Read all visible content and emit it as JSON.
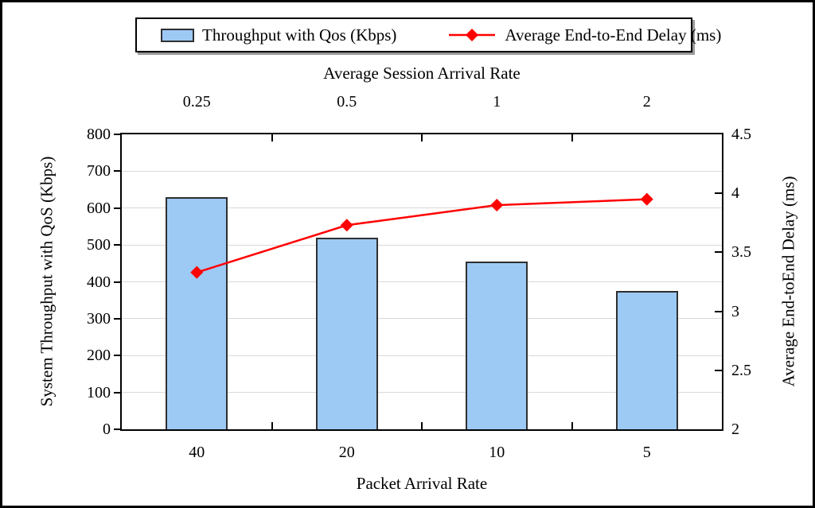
{
  "legend": {
    "items": [
      {
        "label": "Throughput with Qos (Kbps)",
        "type": "bar"
      },
      {
        "label": "Average End-to-End Delay (ms)",
        "type": "line"
      }
    ]
  },
  "colors": {
    "bar_fill": "#9dc9f5",
    "bar_border": "#2f2f2f",
    "line": "#ff0000",
    "gridline": "#d9d9d9",
    "axis": "#000000"
  },
  "chart_data": {
    "type": "bar+line",
    "categories": [
      "40",
      "20",
      "10",
      "5"
    ],
    "series": [
      {
        "name": "Throughput with Qos (Kbps)",
        "type": "bar",
        "axis": "left",
        "values": [
          630,
          520,
          455,
          375
        ],
        "color": "#9dc9f5"
      },
      {
        "name": "Average End-to-End Delay (ms)",
        "type": "line",
        "axis": "right",
        "values": [
          3.33,
          3.73,
          3.9,
          3.95
        ],
        "color": "#ff0000",
        "marker": "diamond"
      }
    ],
    "top_axis": {
      "title": "Average Session Arrival Rate",
      "tick_labels": [
        "0.25",
        "0.5",
        "1",
        "2"
      ]
    },
    "bottom_axis": {
      "title": "Packet Arrival Rate"
    },
    "left_axis": {
      "title": "System Throughput with QoS (Kbps)",
      "min": 0,
      "max": 800,
      "step": 100
    },
    "right_axis": {
      "title": "Average End-toEnd Delay (ms)",
      "min": 2,
      "max": 4.5,
      "step": 0.5
    },
    "grid": true,
    "legend_position": "top"
  }
}
